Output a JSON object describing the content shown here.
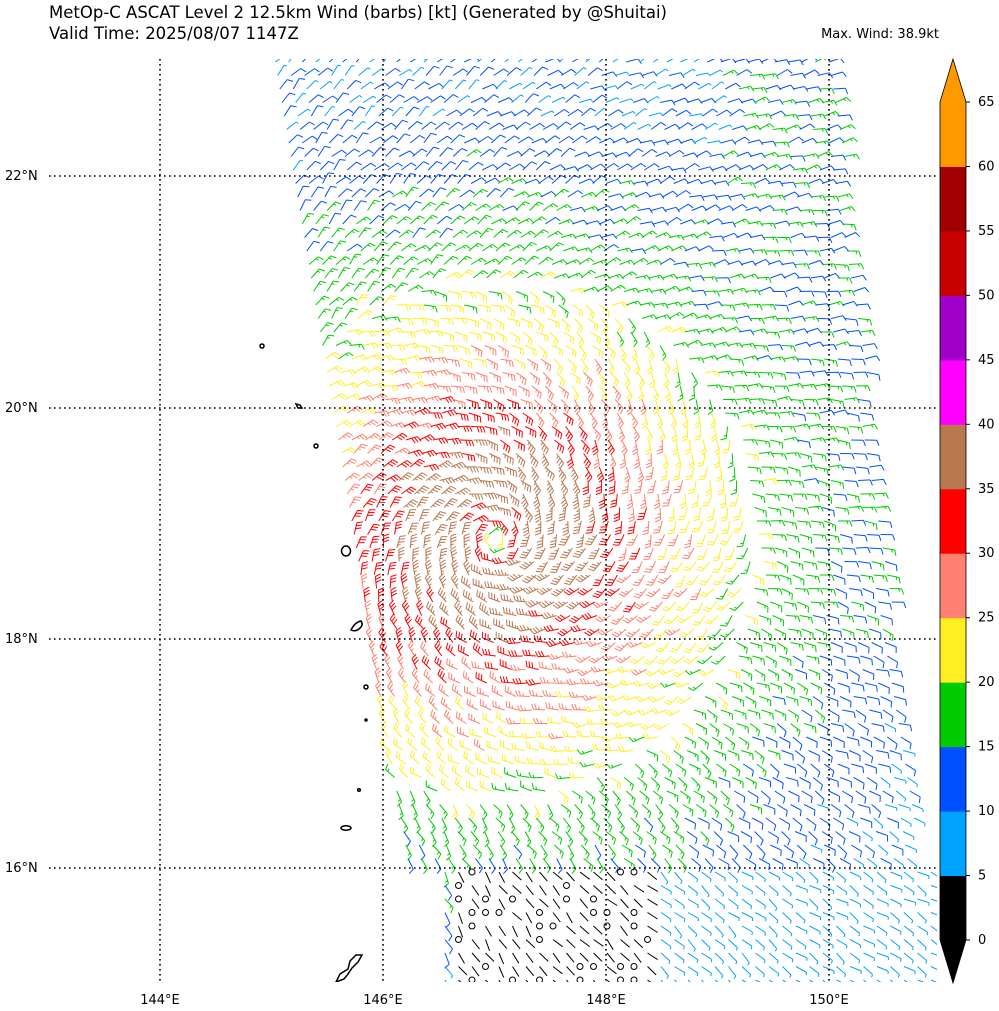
{
  "title": {
    "line1": "MetOp-C ASCAT Level 2 12.5km Wind (barbs) [kt] (Generated by @Shuitai)",
    "line2": "Valid Time: 2025/08/07 1147Z"
  },
  "max_wind": "Max. Wind: 38.9kt",
  "map": {
    "lon_labels": [
      "144°E",
      "146°E",
      "148°E",
      "150°E"
    ],
    "lat_labels": [
      "22°N",
      "20°N",
      "18°N",
      "16°N"
    ],
    "lon_range": [
      143,
      151
    ],
    "lat_range": [
      15,
      23
    ],
    "storm_center": {
      "lon": 147.0,
      "lat": 18.85
    },
    "max_wind_kt": 38.9
  },
  "colorbar": {
    "levels": [
      "0",
      "5",
      "10",
      "15",
      "20",
      "25",
      "30",
      "35",
      "40",
      "45",
      "50",
      "55",
      "60",
      "65"
    ],
    "colors": [
      "#000000",
      "#00a2ff",
      "#0050ff",
      "#00cc00",
      "#ffee22",
      "#ff8070",
      "#ff0000",
      "#b87850",
      "#ff00ff",
      "#a000c8",
      "#c80000",
      "#a00000",
      "#ff9900"
    ],
    "under_color": "#000000",
    "over_color": "#ff9900"
  }
}
